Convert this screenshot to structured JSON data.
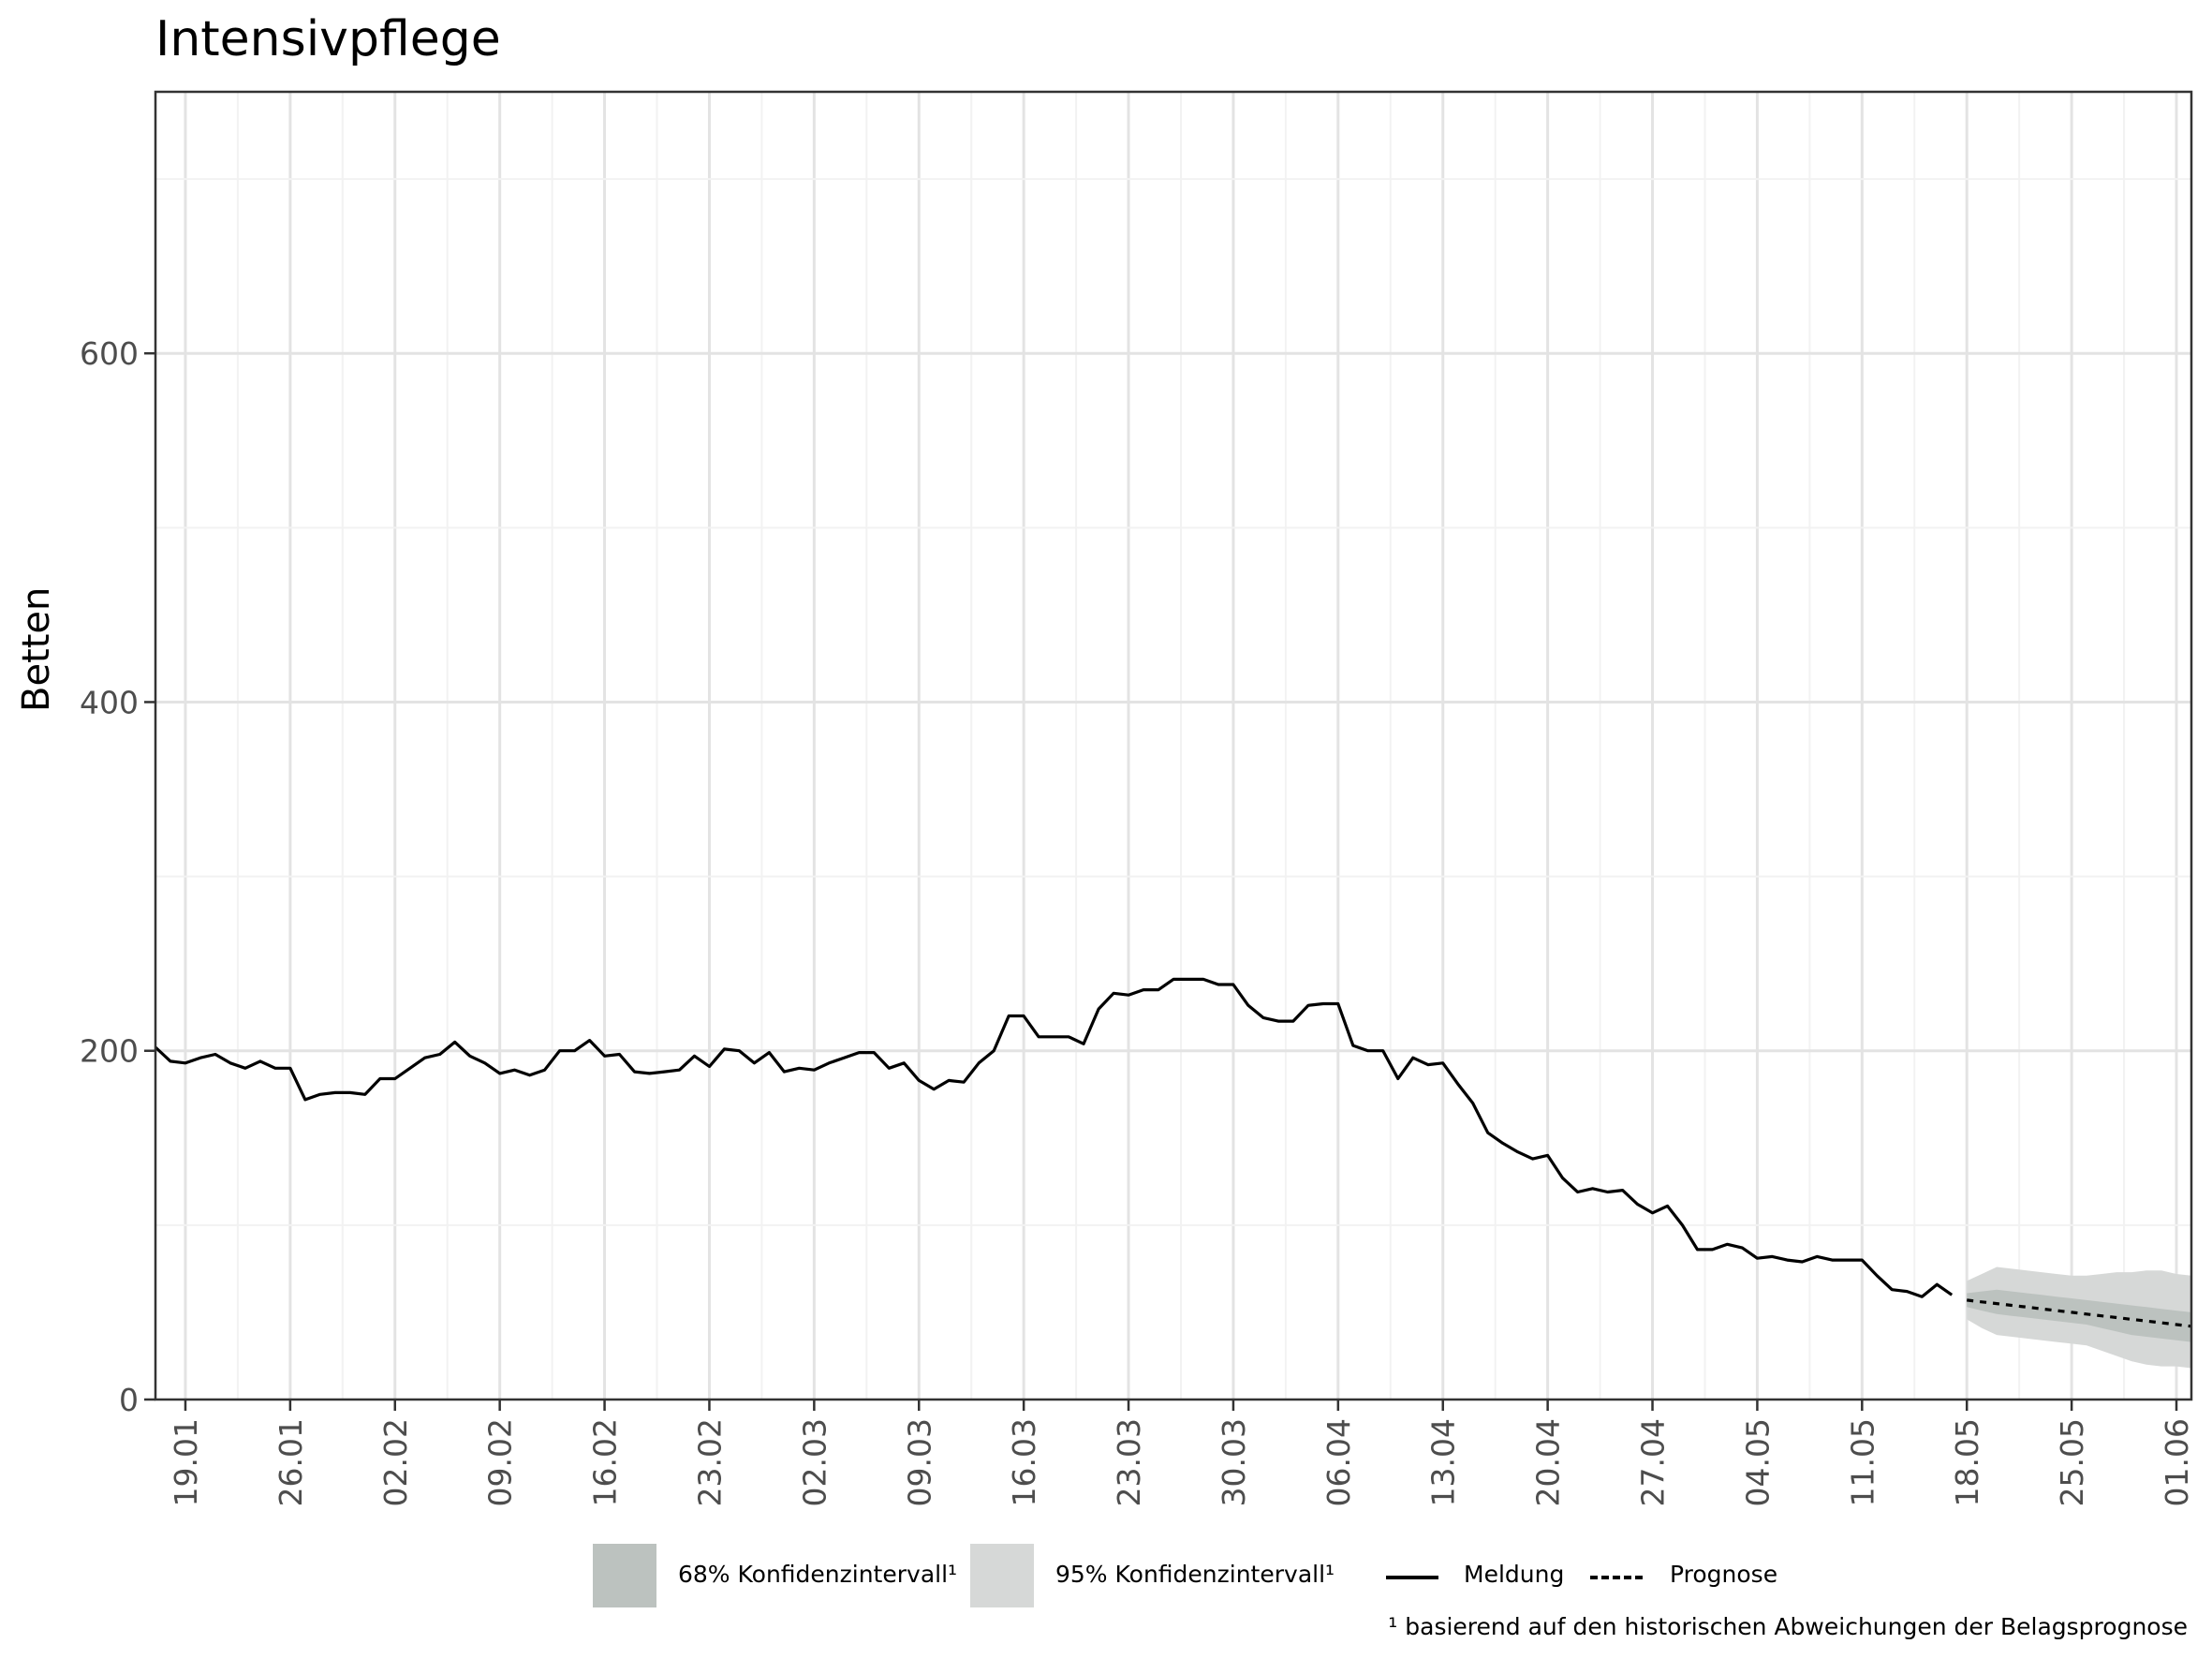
{
  "chart_data": {
    "type": "line",
    "title": "Intensivpflege",
    "ylabel": "Betten",
    "xlabel": "",
    "ylim": [
      0,
      750
    ],
    "y_ticks": [
      0,
      200,
      400,
      600
    ],
    "x_range": [
      "2021-01-17",
      "2021-06-02"
    ],
    "x_tick_dates": [
      "2021-01-19",
      "2021-01-26",
      "2021-02-02",
      "2021-02-09",
      "2021-02-16",
      "2021-02-23",
      "2021-03-02",
      "2021-03-09",
      "2021-03-16",
      "2021-03-23",
      "2021-03-30",
      "2021-04-06",
      "2021-04-13",
      "2021-04-20",
      "2021-04-27",
      "2021-05-04",
      "2021-05-11",
      "2021-05-18",
      "2021-05-25",
      "2021-06-01"
    ],
    "x_tick_labels": [
      "19.01",
      "26.01",
      "02.02",
      "09.02",
      "16.02",
      "23.02",
      "02.03",
      "09.03",
      "16.03",
      "23.03",
      "30.03",
      "06.04",
      "13.04",
      "20.04",
      "27.04",
      "04.05",
      "11.05",
      "18.05",
      "25.05",
      "01.06"
    ],
    "grid": true,
    "legend_position": "bottom",
    "colors": {
      "meldung": "#000000",
      "prognose": "#000000",
      "ci68": "#bcc2bf",
      "ci95": "#d6d8d7",
      "grid_major": "#e3e3e3",
      "grid_minor": "#f2f2f2",
      "axis_text": "#4d4d4d"
    },
    "series": [
      {
        "name": "Meldung",
        "style": "solid",
        "start_date": "2021-01-17",
        "values": [
          202,
          194,
          193,
          196,
          198,
          193,
          190,
          194,
          190,
          190,
          172,
          175,
          176,
          176,
          175,
          184,
          184,
          190,
          196,
          198,
          205,
          197,
          193,
          187,
          189,
          186,
          189,
          200,
          200,
          206,
          197,
          198,
          188,
          187,
          188,
          189,
          197,
          191,
          201,
          200,
          193,
          199,
          188,
          190,
          189,
          193,
          196,
          199,
          199,
          190,
          193,
          183,
          178,
          183,
          182,
          193,
          200,
          220,
          220,
          208,
          208,
          208,
          204,
          224,
          233,
          232,
          235,
          235,
          241,
          241,
          241,
          238,
          238,
          226,
          219,
          217,
          217,
          226,
          227,
          227,
          203,
          200,
          200,
          184,
          196,
          192,
          193,
          181,
          170,
          153,
          147,
          142,
          138,
          140,
          127,
          119,
          121,
          119,
          120,
          112,
          107,
          111,
          100,
          86,
          86,
          89,
          87,
          81,
          82,
          80,
          79,
          82,
          80,
          80,
          80,
          71,
          63,
          62,
          59,
          66,
          60
        ]
      },
      {
        "name": "Prognose",
        "style": "dashed",
        "start_date": "2021-05-18",
        "values": [
          57,
          56,
          55,
          54,
          53,
          52,
          51,
          50,
          49,
          48,
          47,
          46,
          45,
          44,
          43,
          42
        ]
      }
    ],
    "intervals": [
      {
        "name": "68% Konfidenzintervall¹",
        "start_date": "2021-05-18",
        "upper": [
          61,
          62,
          63,
          62,
          61,
          60,
          59,
          58,
          57,
          56,
          55,
          54,
          53,
          52,
          51,
          50
        ],
        "lower": [
          53,
          51,
          49,
          48,
          47,
          46,
          45,
          44,
          43,
          41,
          39,
          37,
          36,
          35,
          34,
          33
        ]
      },
      {
        "name": "95% Konfidenzintervall¹",
        "start_date": "2021-05-18",
        "upper": [
          68,
          72,
          76,
          75,
          74,
          73,
          72,
          71,
          71,
          72,
          73,
          73,
          74,
          74,
          72,
          71
        ],
        "lower": [
          46,
          41,
          37,
          36,
          35,
          34,
          33,
          32,
          31,
          28,
          25,
          22,
          20,
          19,
          19,
          18
        ]
      }
    ],
    "footnote": "¹ basierend auf den historischen Abweichungen der Belagsprognose"
  },
  "legend": {
    "ci68_label": "68% Konfidenzintervall¹",
    "ci95_label": "95% Konfidenzintervall¹",
    "meldung_label": "Meldung",
    "prognose_label": "Prognose"
  }
}
